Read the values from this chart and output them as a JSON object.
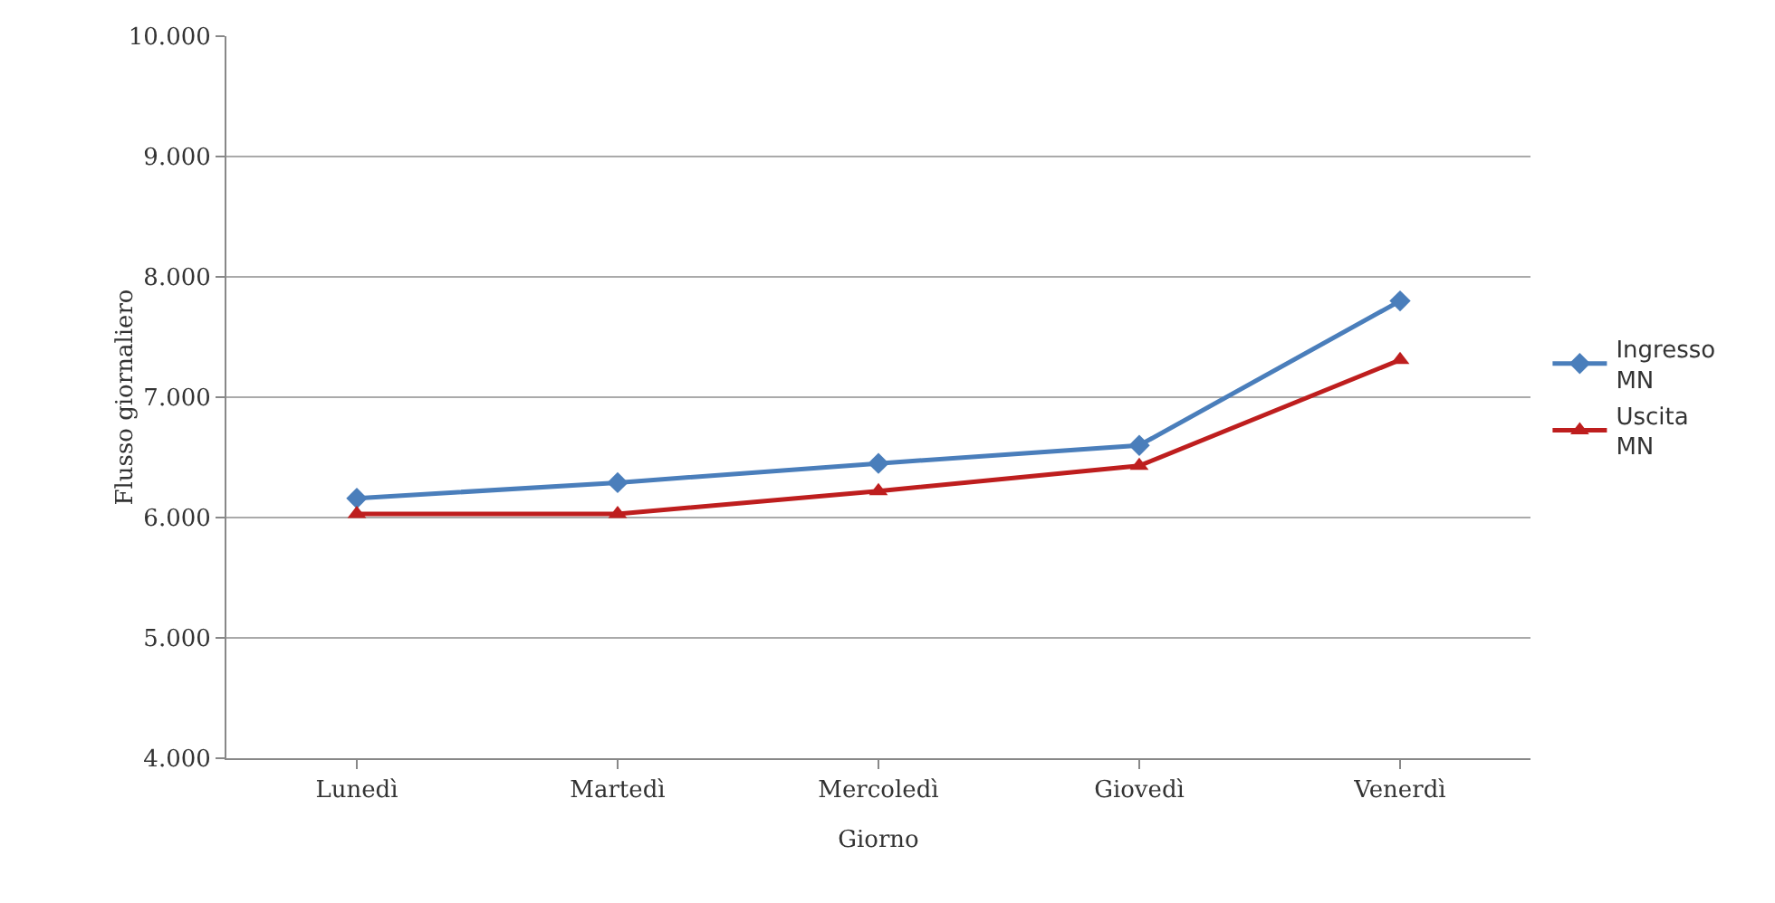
{
  "chart_data": {
    "type": "line",
    "xlabel": "Giorno",
    "ylabel": "Flusso giornaliero",
    "categories": [
      "Lunedì",
      "Martedì",
      "Mercoledì",
      "Giovedì",
      "Venerdì"
    ],
    "series": [
      {
        "name": "Ingresso MN",
        "color": "#4a7ebb",
        "marker": "diamond",
        "values": [
          6160,
          6290,
          6450,
          6600,
          7800
        ]
      },
      {
        "name": "Uscita MN",
        "color": "#be1e1e",
        "marker": "triangle",
        "values": [
          6030,
          6030,
          6220,
          6430,
          7310
        ]
      }
    ],
    "ylim": [
      4000,
      10000
    ],
    "yticks": [
      {
        "value": 4000,
        "label": "4.000"
      },
      {
        "value": 5000,
        "label": "5.000"
      },
      {
        "value": 6000,
        "label": "6.000"
      },
      {
        "value": 7000,
        "label": "7.000"
      },
      {
        "value": 8000,
        "label": "8.000"
      },
      {
        "value": 9000,
        "label": "9.000"
      },
      {
        "value": 10000,
        "label": "10.000"
      }
    ],
    "grid": "y",
    "legend": "right",
    "line_style": "solid"
  }
}
